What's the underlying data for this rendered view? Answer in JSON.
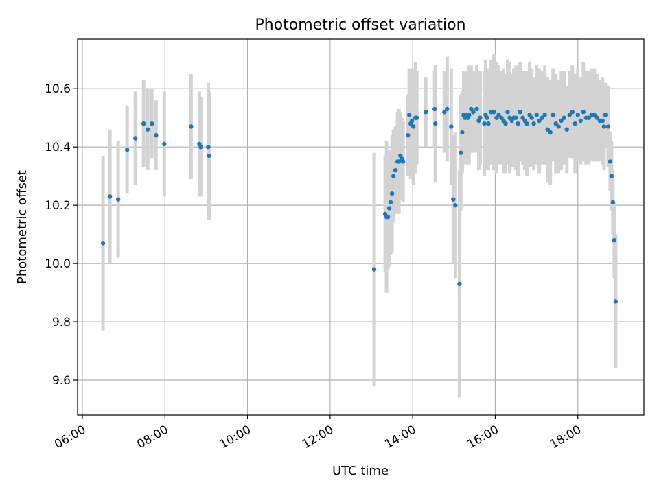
{
  "chart_data": {
    "type": "scatter",
    "title": "Photometric offset variation",
    "xlabel": "UTC time",
    "ylabel": "Photometric offset",
    "x_unit": "hours UTC",
    "xlim": [
      "05:53",
      "19:36"
    ],
    "ylim": [
      9.48,
      10.77
    ],
    "x_ticks": [
      "06:00",
      "08:00",
      "10:00",
      "12:00",
      "14:00",
      "16:00",
      "18:00"
    ],
    "y_ticks": [
      "9.6",
      "9.8",
      "10.0",
      "10.2",
      "10.4",
      "10.6"
    ],
    "grid": true,
    "colors": {
      "point": "#1f77b4",
      "errorbar": "#d3d3d3",
      "grid": "#b0b0b0"
    },
    "series": [
      {
        "x": [
          "06:30",
          "06:40",
          "06:52",
          "07:05",
          "07:17",
          "07:29",
          "07:35",
          "07:41",
          "07:47",
          "07:59",
          "08:38",
          "08:50",
          "08:52",
          "09:03",
          "09:04"
        ],
        "y": [
          10.07,
          10.23,
          10.22,
          10.39,
          10.43,
          10.48,
          10.46,
          10.48,
          10.44,
          10.41,
          10.47,
          10.41,
          10.4,
          10.4,
          10.37
        ],
        "err": [
          0.3,
          0.23,
          0.2,
          0.15,
          0.16,
          0.15,
          0.14,
          0.12,
          0.12,
          0.18,
          0.18,
          0.18,
          0.17,
          0.22,
          0.22
        ]
      },
      {
        "x": [
          "13:04",
          "13:20",
          "13:22",
          "13:24",
          "13:26",
          "13:28",
          "13:30",
          "13:32",
          "13:35",
          "13:38",
          "13:40",
          "13:42",
          "13:44",
          "13:46",
          "13:53",
          "13:55",
          "13:57",
          "13:59",
          "14:01",
          "14:04",
          "14:06",
          "14:19",
          "14:32",
          "14:33",
          "14:46",
          "14:50",
          "14:56",
          "14:59",
          "15:02",
          "15:08",
          "15:10",
          "15:12",
          "15:14",
          "15:16",
          "15:18",
          "15:20",
          "15:22",
          "15:25",
          "15:28",
          "15:33",
          "15:36",
          "15:38",
          "15:44",
          "15:46",
          "15:48",
          "15:50",
          "15:54",
          "15:58",
          "16:02",
          "16:05",
          "16:09",
          "16:12",
          "16:15",
          "16:18",
          "16:21",
          "16:24",
          "16:27",
          "16:30",
          "16:33",
          "16:36",
          "16:40",
          "16:43",
          "16:46",
          "16:50",
          "16:53",
          "16:56",
          "17:00",
          "17:04",
          "17:08",
          "17:12",
          "17:16",
          "17:20",
          "17:24",
          "17:28",
          "17:32",
          "17:36",
          "17:40",
          "17:44",
          "17:48",
          "17:52",
          "17:56",
          "18:00",
          "18:04",
          "18:08",
          "18:12",
          "18:16",
          "18:20",
          "18:24",
          "18:28",
          "18:32",
          "18:36",
          "18:38",
          "18:40",
          "18:44",
          "18:47",
          "18:49",
          "18:51",
          "18:53",
          "18:55"
        ],
        "y": [
          9.98,
          10.17,
          10.16,
          10.16,
          10.19,
          10.21,
          10.24,
          10.3,
          10.32,
          10.35,
          10.35,
          10.37,
          10.36,
          10.35,
          10.44,
          10.51,
          10.48,
          10.49,
          10.47,
          10.5,
          10.5,
          10.52,
          10.53,
          10.48,
          10.52,
          10.53,
          10.47,
          10.22,
          10.2,
          9.93,
          10.38,
          10.45,
          10.51,
          10.5,
          10.51,
          10.5,
          10.51,
          10.53,
          10.52,
          10.53,
          10.49,
          10.5,
          10.48,
          10.51,
          10.5,
          10.48,
          10.52,
          10.52,
          10.5,
          10.51,
          10.5,
          10.49,
          10.48,
          10.52,
          10.5,
          10.49,
          10.5,
          10.5,
          10.48,
          10.52,
          10.5,
          10.49,
          10.48,
          10.51,
          10.5,
          10.48,
          10.51,
          10.49,
          10.5,
          10.51,
          10.46,
          10.45,
          10.51,
          10.48,
          10.47,
          10.49,
          10.5,
          10.46,
          10.51,
          10.52,
          10.48,
          10.51,
          10.49,
          10.52,
          10.5,
          10.5,
          10.51,
          10.51,
          10.5,
          10.49,
          10.49,
          10.47,
          10.51,
          10.47,
          10.35,
          10.3,
          10.21,
          10.08,
          9.87
        ],
        "err": [
          0.4,
          0.2,
          0.26,
          0.18,
          0.2,
          0.18,
          0.2,
          0.16,
          0.15,
          0.17,
          0.18,
          0.15,
          0.14,
          0.14,
          0.14,
          0.16,
          0.19,
          0.17,
          0.2,
          0.19,
          0.16,
          0.12,
          0.13,
          0.2,
          0.14,
          0.18,
          0.2,
          0.22,
          0.25,
          0.39,
          0.2,
          0.14,
          0.15,
          0.16,
          0.15,
          0.14,
          0.17,
          0.15,
          0.14,
          0.15,
          0.17,
          0.16,
          0.18,
          0.19,
          0.17,
          0.16,
          0.18,
          0.2,
          0.19,
          0.17,
          0.16,
          0.18,
          0.17,
          0.18,
          0.19,
          0.16,
          0.17,
          0.18,
          0.18,
          0.17,
          0.16,
          0.17,
          0.18,
          0.18,
          0.17,
          0.16,
          0.17,
          0.18,
          0.16,
          0.17,
          0.18,
          0.18,
          0.16,
          0.17,
          0.16,
          0.17,
          0.16,
          0.15,
          0.15,
          0.16,
          0.17,
          0.16,
          0.15,
          0.17,
          0.16,
          0.16,
          0.16,
          0.16,
          0.15,
          0.14,
          0.15,
          0.15,
          0.11,
          0.14,
          0.1,
          0.12,
          0.11,
          0.13,
          0.23
        ]
      }
    ]
  }
}
